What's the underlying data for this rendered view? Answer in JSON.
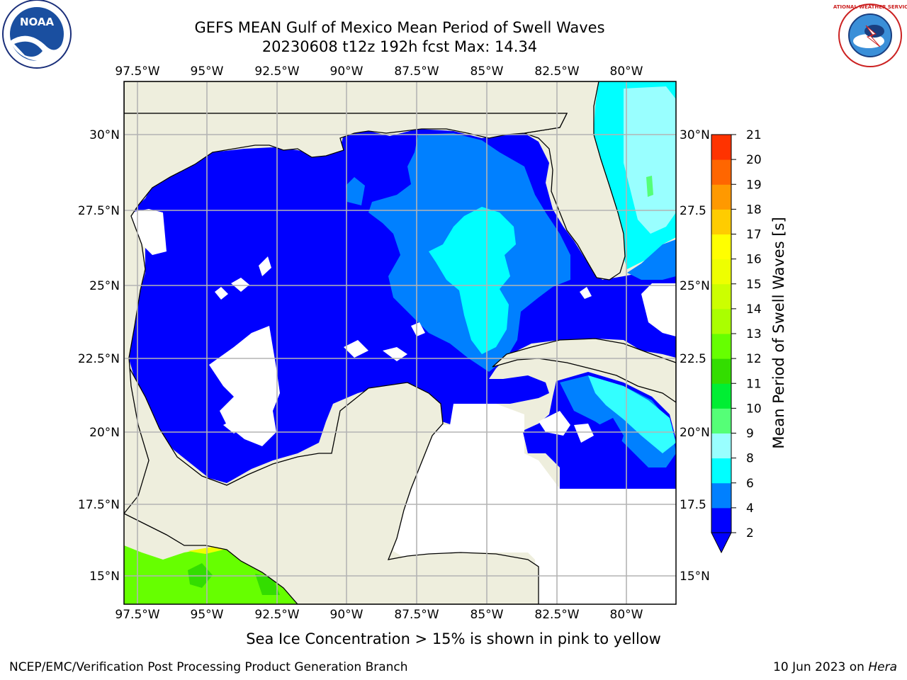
{
  "header": {
    "title_line1": "GEFS MEAN Gulf of Mexico Mean Period of Swell Waves",
    "title_line2": "20230608 t12z 192h fcst   Max: 14.34"
  },
  "logos": {
    "left": {
      "icon": "noaa-logo",
      "text": "NOAA"
    },
    "right": {
      "icon": "nws-logo",
      "text": "NATIONAL WEATHER SERVICE"
    }
  },
  "map": {
    "lon_labels": [
      "97.5°W",
      "95°W",
      "92.5°W",
      "90°W",
      "87.5°W",
      "85°W",
      "82.5°W",
      "80°W"
    ],
    "lat_labels_left": [
      "30°N",
      "27.5°N",
      "25°N",
      "22.5°N",
      "20°N",
      "17.5°N",
      "15°N"
    ],
    "lat_labels_right": [
      "30°N",
      "27.5",
      "25°N",
      "22.5",
      "20°N",
      "17.5",
      "15°N"
    ],
    "colors": {
      "land": "#eeeedd",
      "level_2_4": "#0000ff",
      "level_4_6": "#0080ff",
      "level_6_8": "#00ffff",
      "level_8_10": "#66ffee",
      "level_10_14": "#66ff00",
      "grid": "#b4b4b4"
    }
  },
  "colorbar": {
    "label": "Mean Period of Swell Waves [s]",
    "ticks": [
      "2",
      "4",
      "6",
      "8",
      "9",
      "10",
      "11",
      "12",
      "13",
      "14",
      "15",
      "16",
      "17",
      "18",
      "19",
      "20",
      "21"
    ],
    "colors": [
      "#0000ff",
      "#0080ff",
      "#00ffff",
      "#33ffff",
      "#99ffff",
      "#55ff77",
      "#00ee33",
      "#33dd00",
      "#66ff00",
      "#aaff00",
      "#ccff00",
      "#eeff00",
      "#ffff00",
      "#ffcc00",
      "#ff9900",
      "#ff6600",
      "#ff3300",
      "#ff0000"
    ]
  },
  "caption": "Sea Ice Concentration > 15% is shown in pink to yellow",
  "footer": {
    "left": "NCEP/EMC/Verification Post Processing Product Generation Branch",
    "right_date": "10 Jun 2023 on ",
    "right_host": "Hera"
  }
}
